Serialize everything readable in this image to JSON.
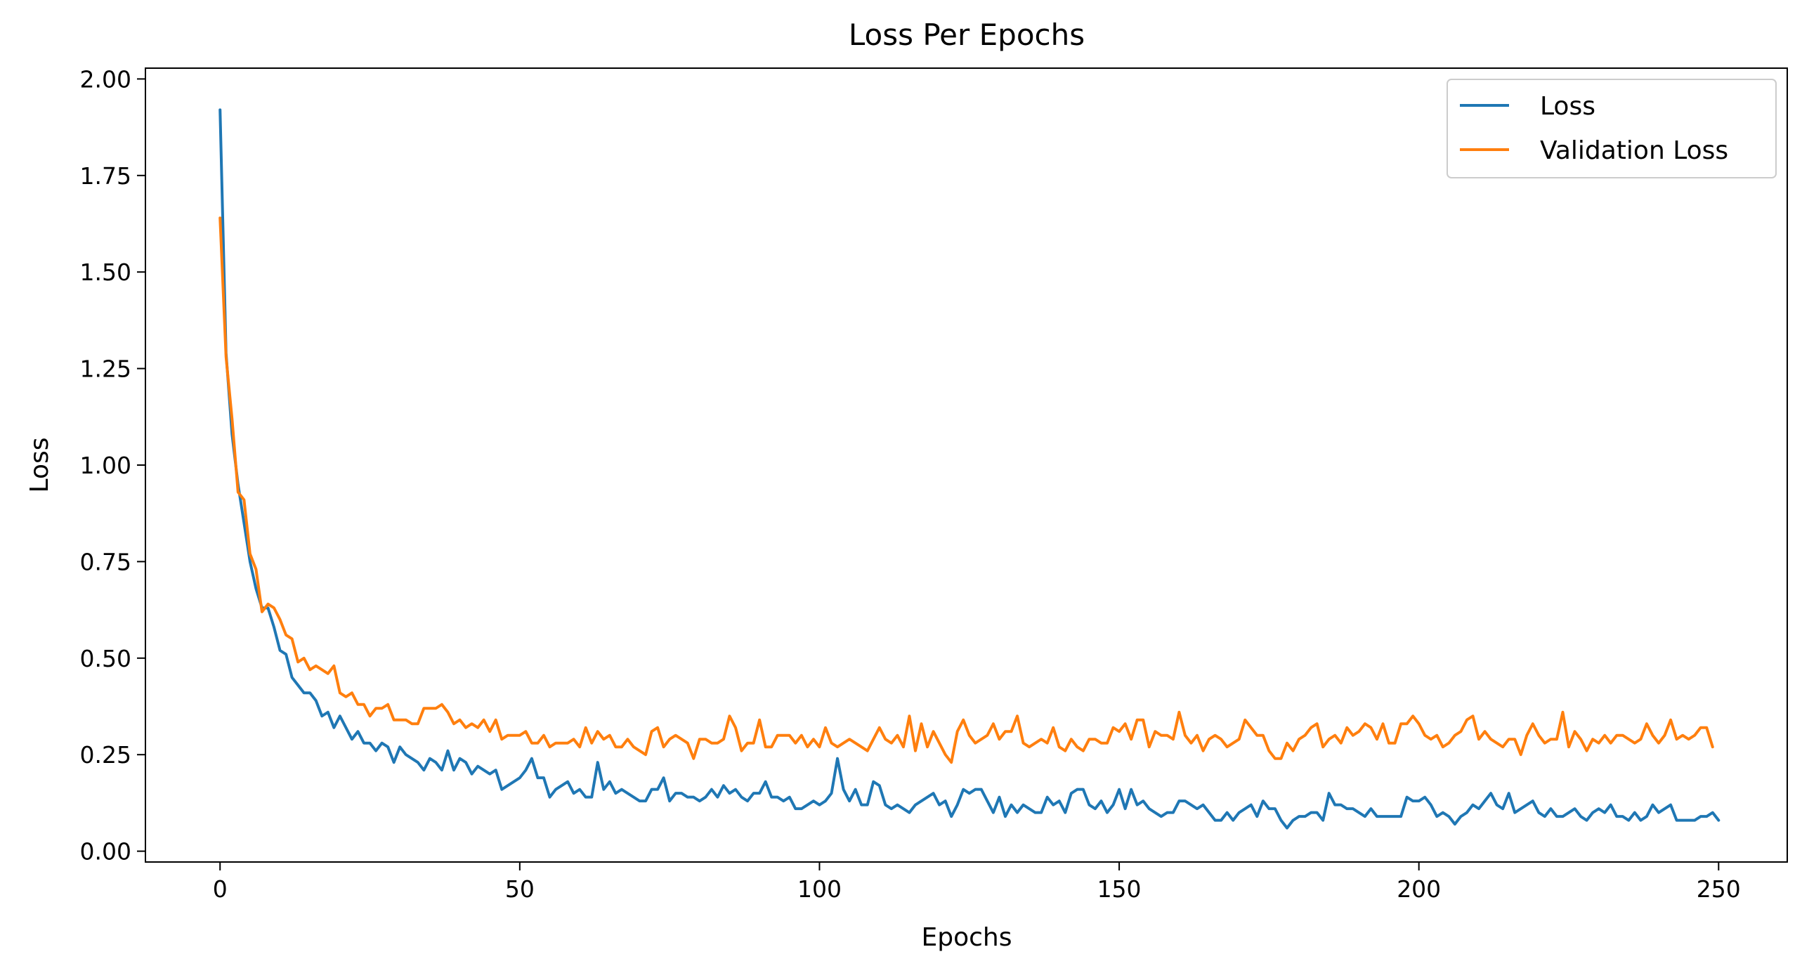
{
  "chart_data": {
    "type": "line",
    "title": "Loss Per Epochs",
    "xlabel": "Epochs",
    "ylabel": "Loss",
    "xlim": [
      -12.45,
      261.45
    ],
    "ylim": [
      -0.028,
      2.028
    ],
    "xticks": [
      0,
      50,
      100,
      150,
      200,
      250
    ],
    "xtick_labels": [
      "0",
      "50",
      "100",
      "150",
      "200",
      "250"
    ],
    "yticks": [
      0.0,
      0.25,
      0.5,
      0.75,
      1.0,
      1.25,
      1.5,
      1.75,
      2.0
    ],
    "ytick_labels": [
      "0.00",
      "0.25",
      "0.50",
      "0.75",
      "1.00",
      "1.25",
      "1.50",
      "1.75",
      "2.00"
    ],
    "grid": false,
    "legend_position": "top-right",
    "series": [
      {
        "name": "Loss",
        "color": "#1f77b4",
        "values": [
          1.92,
          1.29,
          1.08,
          0.95,
          0.85,
          0.75,
          0.68,
          0.63,
          0.63,
          0.58,
          0.52,
          0.51,
          0.45,
          0.43,
          0.41,
          0.41,
          0.39,
          0.35,
          0.36,
          0.32,
          0.35,
          0.32,
          0.29,
          0.31,
          0.28,
          0.28,
          0.26,
          0.28,
          0.27,
          0.23,
          0.27,
          0.25,
          0.24,
          0.23,
          0.21,
          0.24,
          0.23,
          0.21,
          0.26,
          0.21,
          0.24,
          0.23,
          0.2,
          0.22,
          0.21,
          0.2,
          0.21,
          0.16,
          0.17,
          0.18,
          0.19,
          0.21,
          0.24,
          0.19,
          0.19,
          0.14,
          0.16,
          0.17,
          0.18,
          0.15,
          0.16,
          0.14,
          0.14,
          0.23,
          0.16,
          0.18,
          0.15,
          0.16,
          0.15,
          0.14,
          0.13,
          0.13,
          0.16,
          0.16,
          0.19,
          0.13,
          0.15,
          0.15,
          0.14,
          0.14,
          0.13,
          0.14,
          0.16,
          0.14,
          0.17,
          0.15,
          0.16,
          0.14,
          0.13,
          0.15,
          0.15,
          0.18,
          0.14,
          0.14,
          0.13,
          0.14,
          0.11,
          0.11,
          0.12,
          0.13,
          0.12,
          0.13,
          0.15,
          0.24,
          0.16,
          0.13,
          0.16,
          0.12,
          0.12,
          0.18,
          0.17,
          0.12,
          0.11,
          0.12,
          0.11,
          0.1,
          0.12,
          0.13,
          0.14,
          0.15,
          0.12,
          0.13,
          0.09,
          0.12,
          0.16,
          0.15,
          0.16,
          0.16,
          0.13,
          0.1,
          0.14,
          0.09,
          0.12,
          0.1,
          0.12,
          0.11,
          0.1,
          0.1,
          0.14,
          0.12,
          0.13,
          0.1,
          0.15,
          0.16,
          0.16,
          0.12,
          0.11,
          0.13,
          0.1,
          0.12,
          0.16,
          0.11,
          0.16,
          0.12,
          0.13,
          0.11,
          0.1,
          0.09,
          0.1,
          0.1,
          0.13,
          0.13,
          0.12,
          0.11,
          0.12,
          0.1,
          0.08,
          0.08,
          0.1,
          0.08,
          0.1,
          0.11,
          0.12,
          0.09,
          0.13,
          0.11,
          0.11,
          0.08,
          0.06,
          0.08,
          0.09,
          0.09,
          0.1,
          0.1,
          0.08,
          0.15,
          0.12,
          0.12,
          0.11,
          0.11,
          0.1,
          0.09,
          0.11,
          0.09,
          0.09,
          0.09,
          0.09,
          0.09,
          0.14,
          0.13,
          0.13,
          0.14,
          0.12,
          0.09,
          0.1,
          0.09,
          0.07,
          0.09,
          0.1,
          0.12,
          0.11,
          0.13,
          0.15,
          0.12,
          0.11,
          0.15,
          0.1,
          0.11,
          0.12,
          0.13,
          0.1,
          0.09,
          0.11,
          0.09,
          0.09,
          0.1,
          0.11,
          0.09,
          0.08,
          0.1,
          0.11,
          0.1,
          0.12,
          0.09,
          0.09,
          0.08,
          0.1,
          0.08,
          0.09,
          0.12,
          0.1,
          0.11,
          0.12,
          0.08,
          0.08,
          0.08,
          0.08,
          0.09,
          0.09,
          0.1,
          0.08
        ]
      },
      {
        "name": "Validation Loss",
        "color": "#ff7f0e",
        "values": [
          1.64,
          1.28,
          1.12,
          0.93,
          0.91,
          0.77,
          0.73,
          0.62,
          0.64,
          0.63,
          0.6,
          0.56,
          0.55,
          0.49,
          0.5,
          0.47,
          0.48,
          0.47,
          0.46,
          0.48,
          0.41,
          0.4,
          0.41,
          0.38,
          0.38,
          0.35,
          0.37,
          0.37,
          0.38,
          0.34,
          0.34,
          0.34,
          0.33,
          0.33,
          0.37,
          0.37,
          0.37,
          0.38,
          0.36,
          0.33,
          0.34,
          0.32,
          0.33,
          0.32,
          0.34,
          0.31,
          0.34,
          0.29,
          0.3,
          0.3,
          0.3,
          0.31,
          0.28,
          0.28,
          0.3,
          0.27,
          0.28,
          0.28,
          0.28,
          0.29,
          0.27,
          0.32,
          0.28,
          0.31,
          0.29,
          0.3,
          0.27,
          0.27,
          0.29,
          0.27,
          0.26,
          0.25,
          0.31,
          0.32,
          0.27,
          0.29,
          0.3,
          0.29,
          0.28,
          0.24,
          0.29,
          0.29,
          0.28,
          0.28,
          0.29,
          0.35,
          0.32,
          0.26,
          0.28,
          0.28,
          0.34,
          0.27,
          0.27,
          0.3,
          0.3,
          0.3,
          0.28,
          0.3,
          0.27,
          0.29,
          0.27,
          0.32,
          0.28,
          0.27,
          0.28,
          0.29,
          0.28,
          0.27,
          0.26,
          0.29,
          0.32,
          0.29,
          0.28,
          0.3,
          0.27,
          0.35,
          0.26,
          0.33,
          0.27,
          0.31,
          0.28,
          0.25,
          0.23,
          0.31,
          0.34,
          0.3,
          0.28,
          0.29,
          0.3,
          0.33,
          0.29,
          0.31,
          0.31,
          0.35,
          0.28,
          0.27,
          0.28,
          0.29,
          0.28,
          0.32,
          0.27,
          0.26,
          0.29,
          0.27,
          0.26,
          0.29,
          0.29,
          0.28,
          0.28,
          0.32,
          0.31,
          0.33,
          0.29,
          0.34,
          0.34,
          0.27,
          0.31,
          0.3,
          0.3,
          0.29,
          0.36,
          0.3,
          0.28,
          0.3,
          0.26,
          0.29,
          0.3,
          0.29,
          0.27,
          0.28,
          0.29,
          0.34,
          0.32,
          0.3,
          0.3,
          0.26,
          0.24,
          0.24,
          0.28,
          0.26,
          0.29,
          0.3,
          0.32,
          0.33,
          0.27,
          0.29,
          0.3,
          0.28,
          0.32,
          0.3,
          0.31,
          0.33,
          0.32,
          0.29,
          0.33,
          0.28,
          0.28,
          0.33,
          0.33,
          0.35,
          0.33,
          0.3,
          0.29,
          0.3,
          0.27,
          0.28,
          0.3,
          0.31,
          0.34,
          0.35,
          0.29,
          0.31,
          0.29,
          0.28,
          0.27,
          0.29,
          0.29,
          0.25,
          0.3,
          0.33,
          0.3,
          0.28,
          0.29,
          0.29,
          0.36,
          0.27,
          0.31,
          0.29,
          0.26,
          0.29,
          0.28,
          0.3,
          0.28,
          0.3,
          0.3,
          0.29,
          0.28,
          0.29,
          0.33,
          0.3,
          0.28,
          0.3,
          0.34,
          0.29,
          0.3,
          0.29,
          0.3,
          0.32,
          0.32,
          0.27
        ]
      }
    ]
  }
}
